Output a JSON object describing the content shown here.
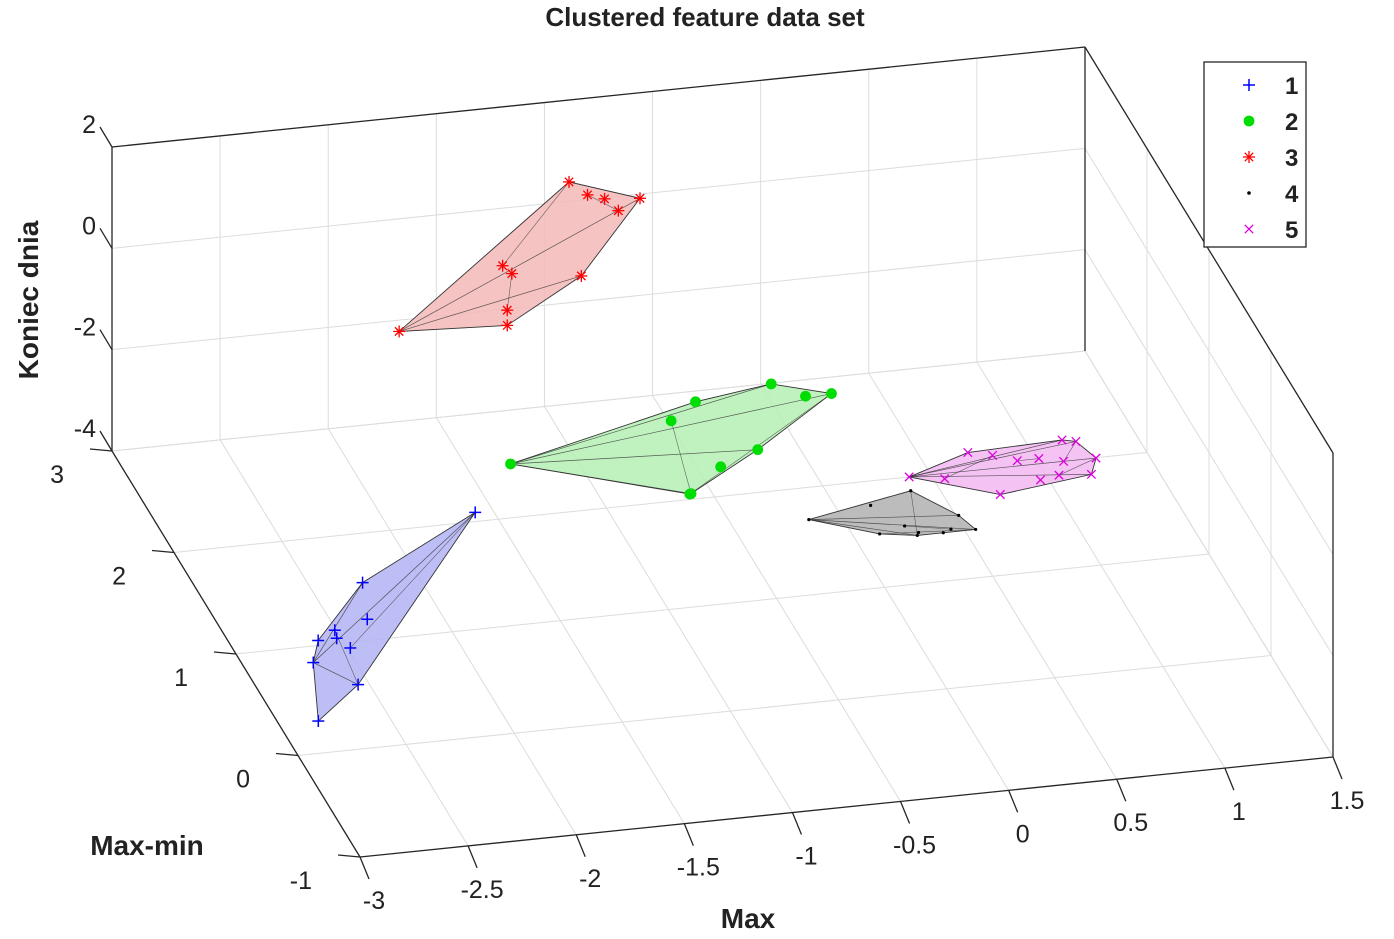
{
  "chart_data": {
    "type": "scatter3d",
    "title": "Clustered feature data set",
    "xlabel": "Max",
    "ylabel": "Max-min",
    "zlabel": "Koniec dnia",
    "x_ticks": [
      "-3",
      "-2.5",
      "-2",
      "-1.5",
      "-1",
      "-0.5",
      "0",
      "0.5",
      "1",
      "1.5"
    ],
    "y_ticks": [
      "-1",
      "0",
      "1",
      "2",
      "3"
    ],
    "z_ticks": [
      "-4",
      "-2",
      "0",
      "2"
    ],
    "xlim": [
      -3,
      1.5
    ],
    "ylim": [
      -1,
      3
    ],
    "zlim": [
      -4,
      2
    ],
    "grid": true,
    "legend_position": "top-right",
    "series": [
      {
        "name": "1",
        "marker": "+",
        "color": "#0000ff",
        "hull_fill": "#b3b3f5",
        "points": [
          [
            -2.82,
            0.3,
            -4
          ],
          [
            -2.7,
            0.8,
            -3.9
          ],
          [
            -2.52,
            1.05,
            -4
          ],
          [
            -2.62,
            1.0,
            -3.9
          ],
          [
            -2.5,
            1.15,
            -4.05
          ],
          [
            -2.35,
            1.15,
            -3.9
          ],
          [
            -2.55,
            0.6,
            -4
          ],
          [
            -2.5,
            0.9,
            -3.9
          ],
          [
            -2.3,
            1.4,
            -3.7
          ],
          [
            -1.65,
            1.85,
            -3.5
          ]
        ]
      },
      {
        "name": "2",
        "marker": "o",
        "color": "#00dd00",
        "hull_fill": "#b5f0b5",
        "points": [
          [
            -1.3,
            2.5,
            -4
          ],
          [
            -0.58,
            2.1,
            -4.1
          ],
          [
            -0.4,
            2.25,
            -3.95
          ],
          [
            -0.5,
            2.7,
            -3.9
          ],
          [
            0.02,
            2.9,
            -3.8
          ],
          [
            0.15,
            2.8,
            -3.9
          ],
          [
            -0.33,
            2.9,
            -4
          ],
          [
            0.27,
            2.8,
            -3.9
          ],
          [
            -0.2,
            2.35,
            -3.9
          ],
          [
            -0.6,
            2.05,
            -4
          ]
        ]
      },
      {
        "name": "3",
        "marker": "*",
        "color": "#ff0000",
        "hull_fill": "#f4b8b8",
        "points": [
          [
            -1.5,
            3.6,
            -3.5
          ],
          [
            -1.0,
            3.6,
            -3.3
          ],
          [
            -1.0,
            3.6,
            -3.6
          ],
          [
            -0.95,
            3.7,
            -2.8
          ],
          [
            -1.05,
            3.5,
            -2.2
          ],
          [
            -0.6,
            3.8,
            -3.2
          ],
          [
            -0.7,
            3.65,
            -1.0
          ],
          [
            -0.6,
            3.7,
            -1.4
          ],
          [
            -0.55,
            3.6,
            -1.3
          ],
          [
            -0.4,
            3.9,
            -2.2
          ],
          [
            -0.3,
            3.9,
            -2.0
          ]
        ]
      },
      {
        "name": "4",
        "marker": ".",
        "color": "#000000",
        "hull_fill": "#b0b0b0",
        "points": [
          [
            -0.15,
            1.7,
            -4
          ],
          [
            0.25,
            1.55,
            -4
          ],
          [
            0.3,
            1.5,
            -4.05
          ],
          [
            0.45,
            1.5,
            -4.05
          ],
          [
            0.55,
            1.45,
            -4
          ],
          [
            0.4,
            1.45,
            -4
          ],
          [
            0.12,
            1.5,
            -4
          ],
          [
            0.35,
            1.8,
            -3.85
          ],
          [
            0.5,
            1.55,
            -3.9
          ],
          [
            0.28,
            1.45,
            -4
          ],
          [
            0.15,
            1.75,
            -3.95
          ]
        ]
      },
      {
        "name": "5",
        "marker": "x",
        "color": "#dd00dd",
        "hull_fill": "#f2b8f2",
        "points": [
          [
            0.4,
            2.0,
            -4
          ],
          [
            0.55,
            1.95,
            -4
          ],
          [
            0.75,
            1.75,
            -4
          ],
          [
            0.8,
            2.05,
            -3.85
          ],
          [
            0.9,
            2.0,
            -3.9
          ],
          [
            0.95,
            1.8,
            -3.9
          ],
          [
            1.0,
            2.0,
            -3.9
          ],
          [
            1.1,
            1.95,
            -3.9
          ],
          [
            1.15,
            2.15,
            -3.9
          ],
          [
            1.2,
            2.1,
            -3.85
          ],
          [
            1.25,
            1.95,
            -3.9
          ],
          [
            1.2,
            1.85,
            -4
          ],
          [
            1.05,
            1.85,
            -3.95
          ],
          [
            0.7,
            2.1,
            -3.85
          ]
        ]
      }
    ]
  }
}
